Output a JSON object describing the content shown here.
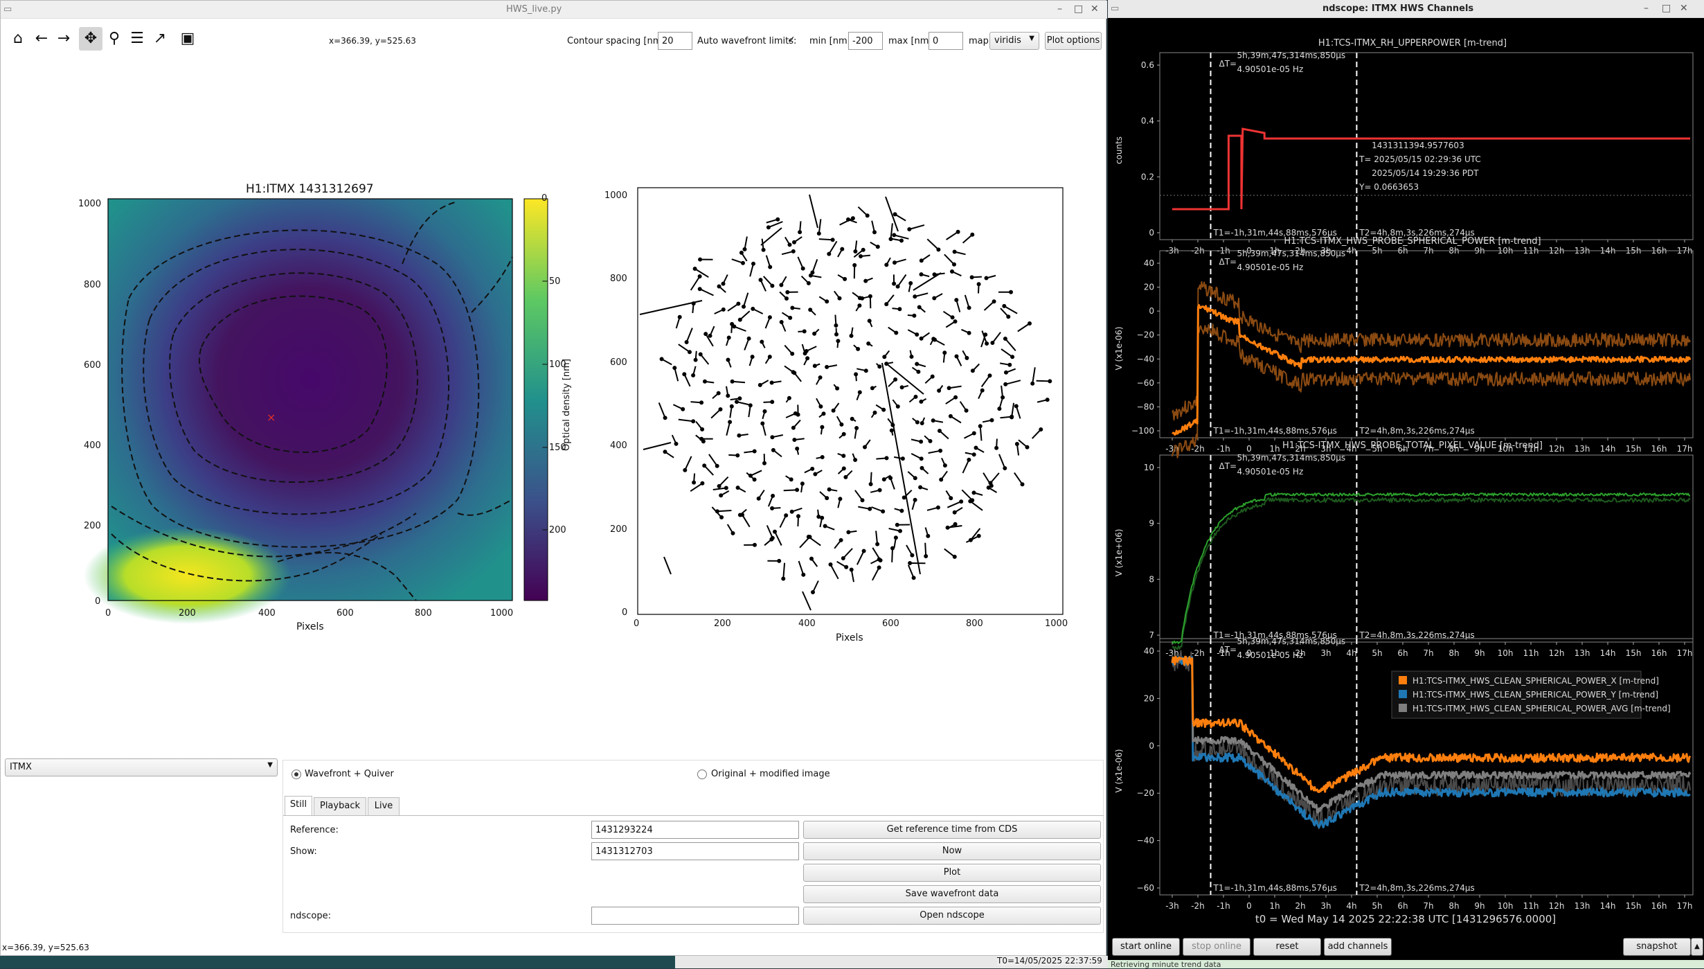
{
  "hws": {
    "title": "HWS_live.py",
    "coord_readout": "x=366.39, y=525.63",
    "top_readout": "x=366.39, y=525.63",
    "contour_label": "Contour spacing [nm]:",
    "contour_value": "20",
    "autolim_label": "Auto wavefront limits:",
    "autolim_checked": "✓",
    "min_label": "min [nm]",
    "min_value": "-200",
    "max_label": "max [nm]",
    "max_value": "0",
    "map_label": "map",
    "map_value": "viridis",
    "plot_options": "Plot options",
    "plot_title": "H1:ITMX 1431312697",
    "cbar_label": "Optical density [nm]",
    "cbar_ticks": [
      "0",
      "−50",
      "−100",
      "−150",
      "−200"
    ],
    "left_yticks": [
      "1000",
      "800",
      "600",
      "400",
      "200",
      "0"
    ],
    "left_xticks": [
      "0",
      "200",
      "400",
      "600",
      "800",
      "1000"
    ],
    "right_yticks": [
      "1000",
      "800",
      "600",
      "400",
      "200",
      "0"
    ],
    "right_xticks": [
      "0",
      "200",
      "400",
      "600",
      "800",
      "1000"
    ],
    "xlabel": "Pixels",
    "optic_select": "ITMX",
    "radio_wavefront": "Wavefront + Quiver",
    "radio_original": "Original + modified image",
    "tabs": [
      "Still",
      "Playback",
      "Live"
    ],
    "reference_label": "Reference:",
    "reference_value": "1431293224",
    "show_label": "Show:",
    "show_value": "1431312703",
    "ndscope_label": "ndscope:",
    "btn_ref": "Get reference time from CDS",
    "btn_now": "Now",
    "btn_plot": "Plot",
    "btn_save": "Save wavefront data",
    "btn_open": "Open ndscope",
    "taskbar_clock": "T0=14/05/2025 22:37:59"
  },
  "ndscope": {
    "title": "ndscope: ITMX HWS Channels",
    "cursor_dt": "ΔT=",
    "cursor_dt_value": "5h,39m,47s,314ms,850µs",
    "cursor_freq": "4.90501e-05 Hz",
    "t1_label": "T1=-1h,31m,44s,88ms,576µs",
    "t2_label": "T2=4h,8m,3s,226ms,274µs",
    "xticks": [
      "-3h",
      "-2h",
      "-1h",
      "0",
      "1h",
      "2h",
      "3h",
      "4h",
      "5h",
      "6h",
      "7h",
      "8h",
      "9h",
      "10h",
      "11h",
      "12h",
      "13h",
      "14h",
      "15h",
      "16h",
      "17h"
    ],
    "t0": "t0 = Wed May 14 2025 22:22:38 UTC [1431296576.0000]",
    "buttons": [
      "start online",
      "stop online",
      "reset",
      "add channels",
      "snapshot"
    ],
    "status": "Retrieving minute trend data",
    "plots": [
      {
        "title": "H1:TCS-ITMX_RH_UPPERPOWER [m-trend]",
        "ylabel": "counts",
        "yticks": [
          "0.6",
          "0.4",
          "0.2",
          "0"
        ]
      },
      {
        "title": "H1:TCS-ITMX_HWS_PROBE_SPHERICAL_POWER [m-trend]",
        "ylabel": "V (x1e-06)",
        "yticks": [
          "40",
          "20",
          "0",
          "−20",
          "−40",
          "−60",
          "−80",
          "−100"
        ]
      },
      {
        "title": "H1:TCS-ITMX_HWS_PROBE_TOTAL_PIXEL_VALUE [m-trend]",
        "ylabel": "V (x1e+06)",
        "yticks": [
          "10",
          "9",
          "8",
          "7"
        ]
      },
      {
        "title": "",
        "ylabel": "V (x1e-06)",
        "yticks": [
          "40",
          "20",
          "0",
          "−20",
          "−40",
          "−60"
        ]
      }
    ],
    "cursor_readout": {
      "line1": "1431311394.9577603",
      "line2": "T= 2025/05/15 02:29:36 UTC",
      "line3": "2025/05/14 19:29:36 PDT",
      "line4": "Y= 0.0663653"
    },
    "legend": [
      {
        "name": "H1:TCS-ITMX_HWS_CLEAN_SPHERICAL_POWER_X [m-trend]",
        "color": "#ff7f0e"
      },
      {
        "name": "H1:TCS-ITMX_HWS_CLEAN_SPHERICAL_POWER_Y [m-trend]",
        "color": "#1f77b4"
      },
      {
        "name": "H1:TCS-ITMX_HWS_CLEAN_SPHERICAL_POWER_AVG [m-trend]",
        "color": "#7f7f7f"
      }
    ]
  }
}
